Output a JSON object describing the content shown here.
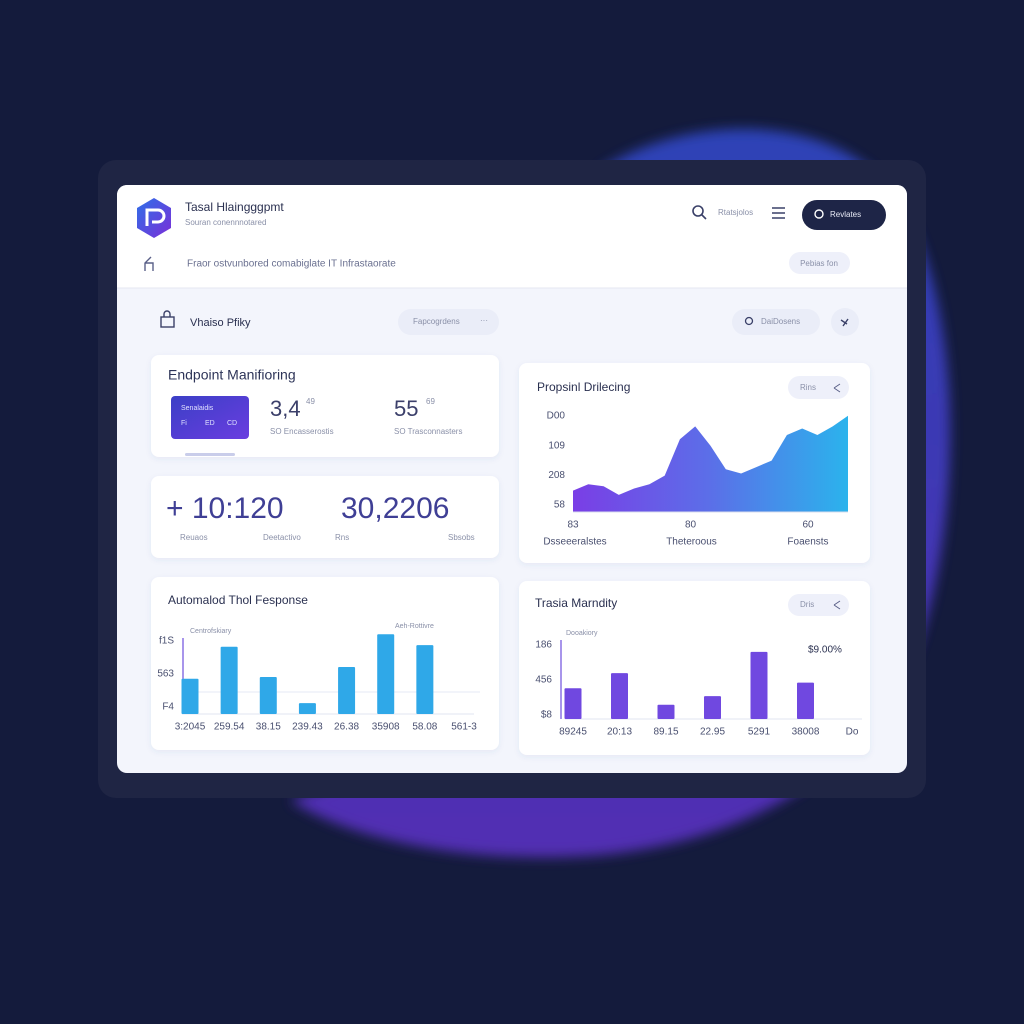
{
  "header": {
    "title": "Tasal Hlaingggpmt",
    "subtitle": "Souran conennnotared",
    "search": "Rtatsjolos",
    "button": "Revlates"
  },
  "breadcrumb": {
    "text": "Fraor ostvunbored comabiglate IT Infrastaorate",
    "button": "Pebias fon"
  },
  "toolbar": {
    "title": "Vhaiso Pfiky",
    "filter": "Fapcogrdens",
    "filter_more": "···",
    "search": "DaiDosens"
  },
  "endpoint": {
    "title": "Endpoint Manifioring",
    "card_label": "Senalaidis",
    "card_chips": [
      "Fi",
      "ED",
      "CD"
    ],
    "stats": [
      {
        "value": "3,4",
        "sup": "49",
        "label": "SO Encasserostis"
      },
      {
        "value": "55",
        "sup": "69",
        "label": "SO Trasconnasters"
      }
    ]
  },
  "totals": {
    "items": [
      {
        "value": "+ 10:120",
        "labels": [
          "Reuaos",
          "Deetactivo"
        ]
      },
      {
        "value": "30,2206",
        "labels": [
          "Rns",
          "Sbsobs"
        ]
      }
    ]
  },
  "area_chart": {
    "type": "area",
    "title": "Propsinl Drilecing",
    "button": "Rins",
    "ytick_labels": [
      "D00",
      "109",
      "208",
      "58"
    ],
    "xtick_labels": [
      "83",
      "80",
      "60"
    ],
    "x_labels": [
      "Dsseeeralstes",
      "Theteroous",
      "Foaensts"
    ],
    "values": [
      20,
      26,
      24,
      16,
      22,
      26,
      34,
      68,
      80,
      62,
      40,
      36,
      42,
      48,
      72,
      78,
      72,
      80,
      90
    ],
    "ylim": [
      0,
      100
    ],
    "colors": [
      "#7a3ee6",
      "#5b6fe8",
      "#2bb3ec"
    ]
  },
  "bar_chart_1": {
    "type": "bar",
    "title": "Automalod Thol Fesponse",
    "legend": "Centrofskiary",
    "annotation": "Aeh-Rottivre",
    "ytick_labels": [
      "f1S",
      "563",
      "F4"
    ],
    "categories": [
      "3:2045",
      "259.54",
      "38.15",
      "239.43",
      "26.38",
      "35908",
      "58.08",
      "561-3"
    ],
    "values": [
      42,
      80,
      44,
      13,
      56,
      95,
      82,
      null
    ],
    "ylim": [
      0,
      100
    ],
    "color": "#2fa8e8"
  },
  "bar_chart_2": {
    "type": "bar",
    "title": "Trasia Marndity",
    "button": "Dris",
    "legend": "Dooakiory",
    "annotation": "$9.00%",
    "ytick_labels": [
      "186",
      "456",
      "$8"
    ],
    "categories": [
      "89245",
      "20:13",
      "89.15",
      "22.95",
      "5291",
      "38008",
      "Do"
    ],
    "values": [
      39,
      58,
      18,
      29,
      85,
      46,
      null
    ],
    "ylim": [
      0,
      100
    ],
    "color": "#7048e0"
  }
}
